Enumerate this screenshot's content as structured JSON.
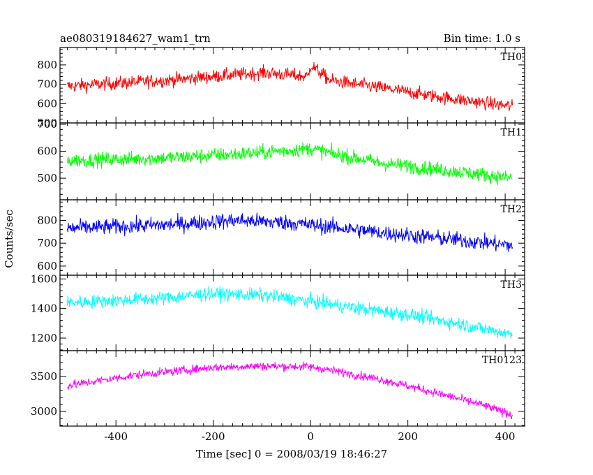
{
  "chart_data": {
    "type": "line",
    "title_left": "ae080319184627_wam1_trn",
    "title_right": "Bin time: 1.0 s",
    "xlabel": "Time [sec] 0 = 2008/03/19 18:46:27",
    "ylabel": "Counts/sec",
    "xlim": [
      -515,
      440
    ],
    "x_ticks": [
      -400,
      -200,
      0,
      200,
      400
    ],
    "x_range": [
      -500,
      415
    ],
    "bin_time": 1.0,
    "panels": [
      {
        "name": "TH0",
        "color": "#ff0000",
        "ylim": [
          500,
          890
        ],
        "y_ticks": [
          500,
          600,
          700,
          800
        ],
        "trend": [
          [
            -500,
            690
          ],
          [
            -300,
            720
          ],
          [
            -100,
            760
          ],
          [
            -5,
            740
          ],
          [
            0,
            800
          ],
          [
            40,
            720
          ],
          [
            150,
            680
          ],
          [
            250,
            640
          ],
          [
            415,
            585
          ]
        ],
        "noise": 45
      },
      {
        "name": "TH1",
        "color": "#00ff00",
        "ylim": [
          420,
          705
        ],
        "y_ticks": [
          500,
          600,
          700
        ],
        "trend": [
          [
            -500,
            565
          ],
          [
            -300,
            575
          ],
          [
            -100,
            595
          ],
          [
            0,
            610
          ],
          [
            50,
            590
          ],
          [
            150,
            555
          ],
          [
            300,
            525
          ],
          [
            415,
            500
          ]
        ],
        "noise": 35
      },
      {
        "name": "TH2",
        "color": "#0000ff",
        "ylim": [
          560,
          890
        ],
        "y_ticks": [
          600,
          700,
          800
        ],
        "trend": [
          [
            -500,
            765
          ],
          [
            -300,
            780
          ],
          [
            -150,
            800
          ],
          [
            -50,
            790
          ],
          [
            50,
            770
          ],
          [
            150,
            745
          ],
          [
            300,
            715
          ],
          [
            415,
            690
          ]
        ],
        "noise": 45
      },
      {
        "name": "TH3",
        "color": "#00ffff",
        "ylim": [
          1115,
          1625
        ],
        "y_ticks": [
          1200,
          1400,
          1600
        ],
        "trend": [
          [
            -500,
            1440
          ],
          [
            -300,
            1470
          ],
          [
            -200,
            1500
          ],
          [
            -100,
            1490
          ],
          [
            0,
            1450
          ],
          [
            100,
            1400
          ],
          [
            200,
            1360
          ],
          [
            300,
            1300
          ],
          [
            415,
            1225
          ]
        ],
        "noise": 60
      },
      {
        "name": "TH0123",
        "color": "#ff00ff",
        "ylim": [
          2790,
          3870
        ],
        "y_ticks": [
          3000,
          3500
        ],
        "trend": [
          [
            -500,
            3370
          ],
          [
            -350,
            3530
          ],
          [
            -200,
            3630
          ],
          [
            -100,
            3650
          ],
          [
            0,
            3640
          ],
          [
            50,
            3580
          ],
          [
            150,
            3450
          ],
          [
            250,
            3280
          ],
          [
            350,
            3100
          ],
          [
            415,
            2950
          ]
        ],
        "noise": 80
      }
    ]
  }
}
